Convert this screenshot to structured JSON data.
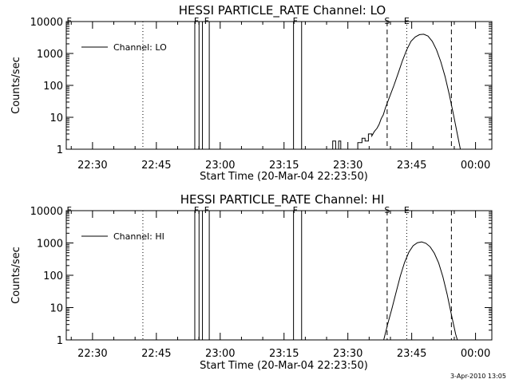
{
  "footer_date": "3-Apr-2010 13:05",
  "chart_data": [
    {
      "type": "line",
      "title": "HESSI PARTICLE_RATE Channel: LO",
      "xlabel": "Start Time (20-Mar-04 22:23:50)",
      "ylabel": "Counts/sec",
      "yscale": "log",
      "ylim": [
        1,
        10000
      ],
      "xlim_minutes_after_start": [
        0,
        100
      ],
      "x_ticks": [
        "22:30",
        "22:45",
        "23:00",
        "23:15",
        "23:30",
        "23:45",
        "00:00"
      ],
      "y_ticks": [
        "1",
        "10",
        "100",
        "1000",
        "10000"
      ],
      "legend": {
        "label": "Channel: LO",
        "position": "top-left"
      },
      "marker_labels": [
        "F",
        "F",
        "F",
        "F",
        "F",
        "S",
        "E"
      ],
      "series": [
        {
          "name": "Channel: LO",
          "points": [
            [
              62.6,
              1
            ],
            [
              62.6,
              1.8
            ],
            [
              63.3,
              1.8
            ],
            [
              63.3,
              1
            ],
            [
              64.0,
              1
            ],
            [
              64.0,
              1.8
            ],
            [
              64.5,
              1.8
            ],
            [
              64.5,
              1
            ],
            [
              68.5,
              1
            ],
            [
              68.5,
              1.6
            ],
            [
              69.5,
              1.6
            ],
            [
              69.5,
              2.2
            ],
            [
              70.2,
              2.2
            ],
            [
              70.2,
              1.8
            ],
            [
              71.0,
              1.8
            ],
            [
              71.0,
              3.0
            ],
            [
              71.8,
              3.0
            ],
            [
              71.8,
              2.6
            ],
            [
              72.4,
              3.6
            ],
            [
              73.0,
              4.5
            ],
            [
              73.5,
              6
            ],
            [
              74.0,
              9
            ],
            [
              74.5,
              12
            ],
            [
              75.0,
              20
            ],
            [
              76,
              45
            ],
            [
              77,
              100
            ],
            [
              78,
              240
            ],
            [
              79,
              600
            ],
            [
              80,
              1300
            ],
            [
              81,
              2400
            ],
            [
              82,
              3300
            ],
            [
              83,
              3900
            ],
            [
              84,
              4000
            ],
            [
              85,
              3500
            ],
            [
              86,
              2400
            ],
            [
              87,
              1300
            ],
            [
              88,
              560
            ],
            [
              89,
              190
            ],
            [
              90,
              52
            ],
            [
              91,
              12
            ],
            [
              92,
              2.5
            ],
            [
              92.6,
              1
            ]
          ]
        }
      ]
    },
    {
      "type": "line",
      "title": "HESSI PARTICLE_RATE Channel: HI",
      "xlabel": "Start Time (20-Mar-04 22:23:50)",
      "ylabel": "Counts/sec",
      "yscale": "log",
      "ylim": [
        1,
        10000
      ],
      "xlim_minutes_after_start": [
        0,
        100
      ],
      "x_ticks": [
        "22:30",
        "22:45",
        "23:00",
        "23:15",
        "23:30",
        "23:45",
        "00:00"
      ],
      "y_ticks": [
        "1",
        "10",
        "100",
        "1000",
        "10000"
      ],
      "legend": {
        "label": "Channel: HI",
        "position": "top-left"
      },
      "marker_labels": [
        "F",
        "F",
        "F",
        "F",
        "F",
        "S",
        "E"
      ],
      "series": [
        {
          "name": "Channel: HI",
          "points": [
            [
              74.6,
              1
            ],
            [
              75.5,
              3
            ],
            [
              76.5,
              9
            ],
            [
              77.5,
              30
            ],
            [
              78.5,
              95
            ],
            [
              79.5,
              250
            ],
            [
              80.5,
              520
            ],
            [
              81.5,
              820
            ],
            [
              82.5,
              1020
            ],
            [
              83.5,
              1080
            ],
            [
              84.5,
              980
            ],
            [
              85.5,
              760
            ],
            [
              86.5,
              480
            ],
            [
              87.5,
              240
            ],
            [
              88.5,
              90
            ],
            [
              89.5,
              26
            ],
            [
              90.5,
              6
            ],
            [
              91.5,
              1.5
            ],
            [
              91.9,
              1
            ]
          ]
        }
      ]
    }
  ]
}
